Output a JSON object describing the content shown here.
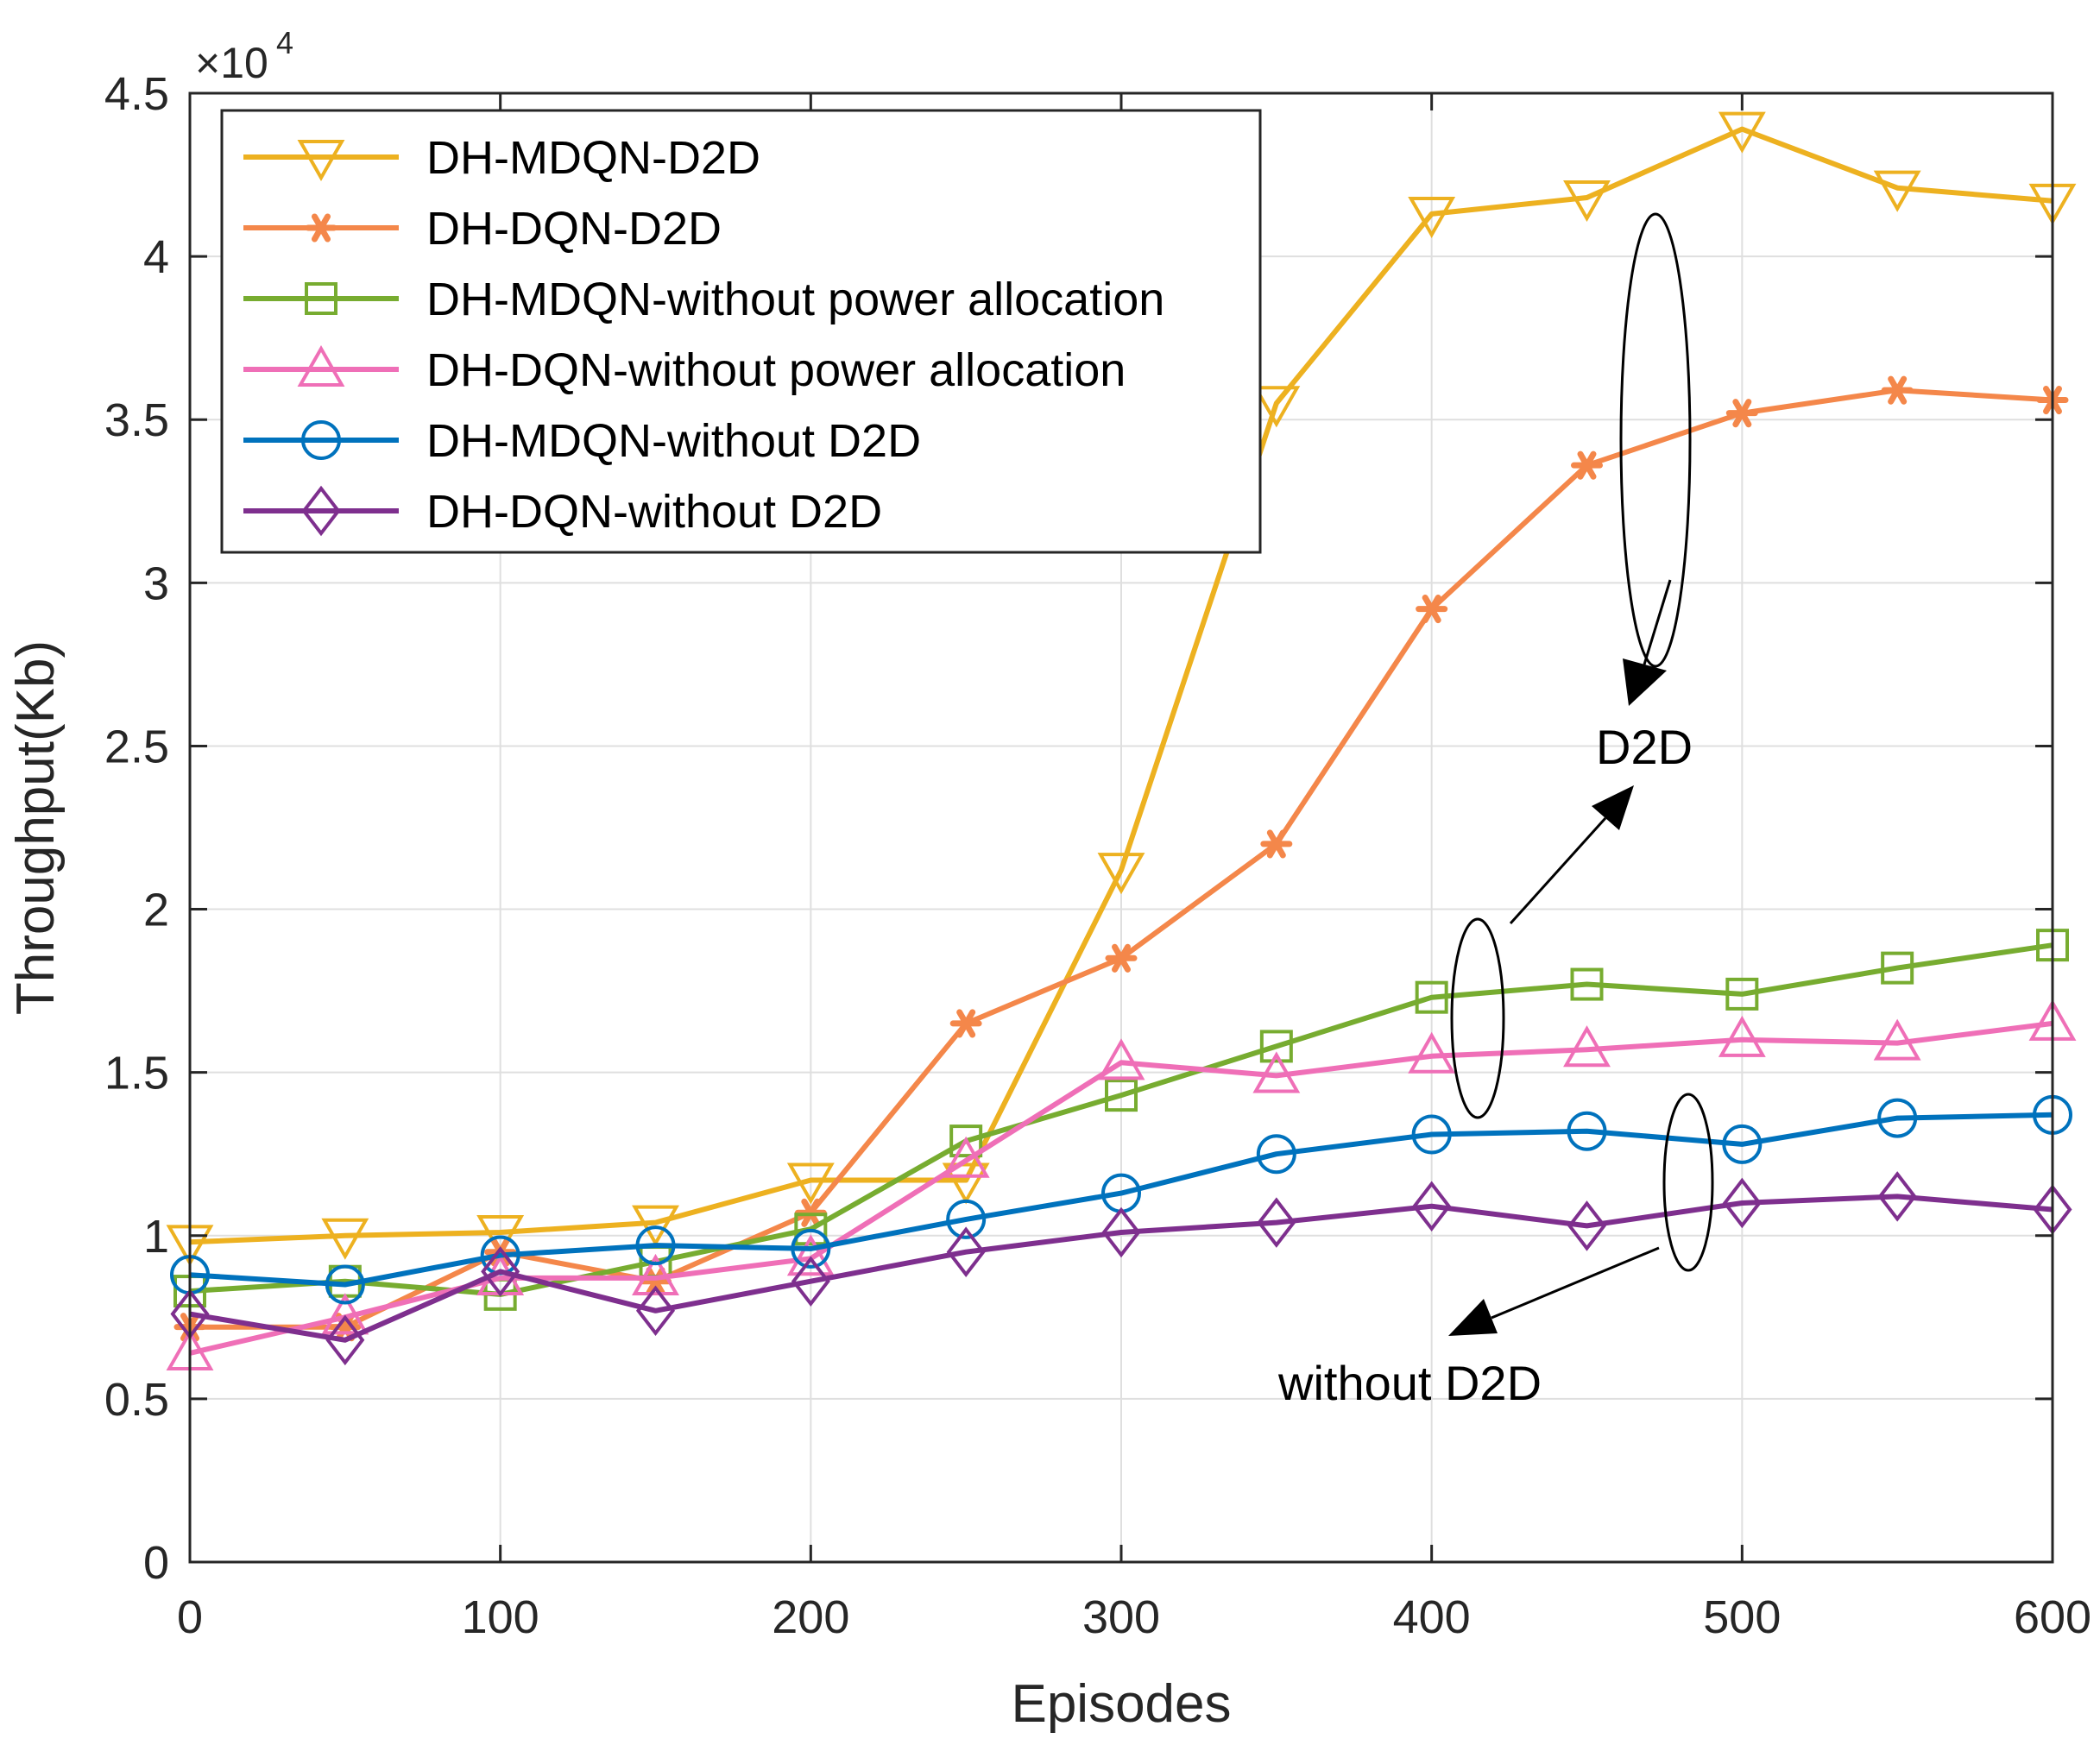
{
  "chart_data": {
    "type": "line",
    "title": "",
    "xlabel": "Episodes",
    "ylabel": "Throughput(Kb)",
    "xlim": [
      0,
      600
    ],
    "ylim": [
      0,
      4.5
    ],
    "y_scale_multiplier": "×10",
    "y_scale_exponent": "4",
    "xticks": [
      0,
      100,
      200,
      300,
      400,
      500,
      600
    ],
    "xtick_labels": [
      "0",
      "100",
      "200",
      "300",
      "400",
      "500",
      "600"
    ],
    "yticks": [
      0,
      0.5,
      1,
      1.5,
      2,
      2.5,
      3,
      3.5,
      4,
      4.5
    ],
    "ytick_labels": [
      "0",
      "0.5",
      "1",
      "1.5",
      "2",
      "2.5",
      "3",
      "3.5",
      "4",
      "4.5"
    ],
    "grid": true,
    "legend_position": "top-left",
    "x": [
      0,
      50,
      100,
      150,
      200,
      250,
      300,
      350,
      400,
      450,
      500,
      550,
      600
    ],
    "series": [
      {
        "name": "DH-MDQN-D2D",
        "color": "#EDB120",
        "marker": "triangle-down",
        "values": [
          0.98,
          1.0,
          1.01,
          1.04,
          1.17,
          1.17,
          2.12,
          3.55,
          4.13,
          4.18,
          4.39,
          4.21,
          4.17
        ]
      },
      {
        "name": "DH-DQN-D2D",
        "color": "#F4874A",
        "marker": "asterisk",
        "values": [
          0.72,
          0.72,
          0.95,
          0.86,
          1.07,
          1.65,
          1.85,
          2.2,
          2.92,
          3.36,
          3.52,
          3.59,
          3.56
        ]
      },
      {
        "name": "DH-MDQN-without power allocation",
        "color": "#77AC30",
        "marker": "square",
        "values": [
          0.83,
          0.86,
          0.82,
          0.92,
          1.02,
          1.29,
          1.43,
          1.58,
          1.73,
          1.77,
          1.74,
          1.82,
          1.89
        ]
      },
      {
        "name": "DH-DQN-without power allocation",
        "color": "#EF6FB7",
        "marker": "triangle-up",
        "values": [
          0.64,
          0.75,
          0.87,
          0.87,
          0.93,
          1.23,
          1.53,
          1.49,
          1.55,
          1.57,
          1.6,
          1.59,
          1.65
        ]
      },
      {
        "name": "DH-MDQN-without D2D",
        "color": "#0072BD",
        "marker": "circle",
        "values": [
          0.88,
          0.85,
          0.94,
          0.97,
          0.96,
          1.05,
          1.13,
          1.25,
          1.31,
          1.32,
          1.28,
          1.36,
          1.37
        ]
      },
      {
        "name": "DH-DQN-without D2D",
        "color": "#7E2F8E",
        "marker": "diamond",
        "values": [
          0.76,
          0.68,
          0.89,
          0.77,
          0.86,
          0.95,
          1.01,
          1.04,
          1.09,
          1.03,
          1.1,
          1.12,
          1.08
        ]
      }
    ],
    "annotations": [
      {
        "text": "D2D",
        "x": 475,
        "y": 2.5
      },
      {
        "text": "without D2D",
        "x": 460,
        "y": 0.55
      }
    ]
  }
}
